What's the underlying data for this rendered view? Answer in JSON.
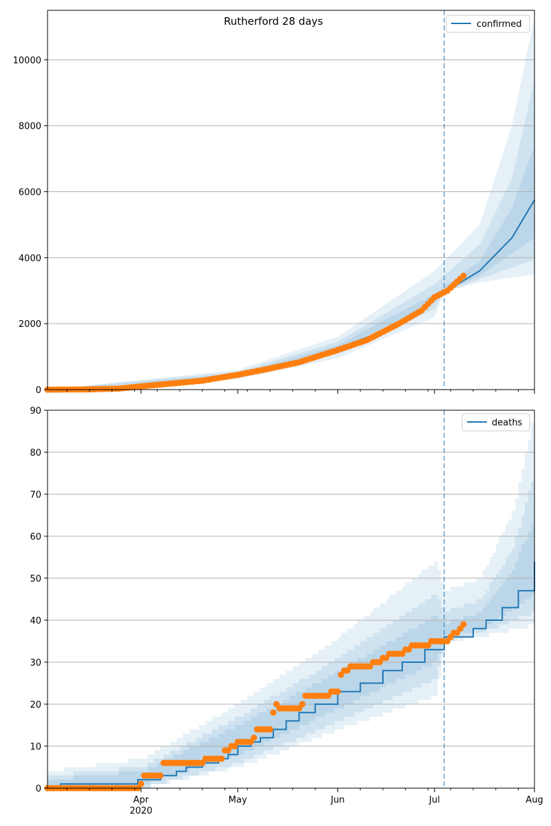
{
  "chart_data": [
    {
      "type": "line",
      "title": "Rutherford 28 days",
      "legend": {
        "label": "confirmed",
        "placement": "top-right"
      },
      "ylim": [
        0,
        11500
      ],
      "yticks": [
        0,
        2000,
        4000,
        6000,
        8000,
        10000
      ],
      "xlim": [
        "2020-03-03",
        "2020-08-01"
      ],
      "grid_y": true,
      "forecast_start": "2020-07-04",
      "colors": {
        "line": "#1f77b4",
        "points": "#ff7f0e",
        "band": "#1f77b4",
        "vline": "#1f77b4"
      },
      "series": [
        {
          "name": "confirmed",
          "kind": "line",
          "points": [
            [
              "2020-03-03",
              0
            ],
            [
              "2020-03-15",
              5
            ],
            [
              "2020-03-25",
              30
            ],
            [
              "2020-04-01",
              100
            ],
            [
              "2020-04-10",
              180
            ],
            [
              "2020-04-20",
              270
            ],
            [
              "2020-05-01",
              420
            ],
            [
              "2020-05-10",
              610
            ],
            [
              "2020-05-20",
              810
            ],
            [
              "2020-06-01",
              1260
            ],
            [
              "2020-06-15",
              1760
            ],
            [
              "2020-06-25",
              2300
            ],
            [
              "2020-07-04",
              2950
            ],
            [
              "2020-07-15",
              3600
            ],
            [
              "2020-07-25",
              4600
            ],
            [
              "2020-08-01",
              5750
            ]
          ]
        },
        {
          "kind": "points",
          "points": [
            [
              "2020-03-03",
              0
            ],
            [
              "2020-03-15",
              5
            ],
            [
              "2020-03-25",
              30
            ],
            [
              "2020-04-01",
              100
            ],
            [
              "2020-04-10",
              180
            ],
            [
              "2020-04-20",
              270
            ],
            [
              "2020-05-01",
              450
            ],
            [
              "2020-05-10",
              620
            ],
            [
              "2020-05-20",
              830
            ],
            [
              "2020-06-01",
              1200
            ],
            [
              "2020-06-10",
              1500
            ],
            [
              "2020-06-20",
              2000
            ],
            [
              "2020-06-27",
              2400
            ],
            [
              "2020-07-01",
              2800
            ],
            [
              "2020-07-05",
              3000
            ],
            [
              "2020-07-10",
              3450
            ]
          ]
        }
      ],
      "bands": [
        {
          "upper": [
            [
              "2020-03-03",
              0
            ],
            [
              "2020-05-01",
              600
            ],
            [
              "2020-06-01",
              1600
            ],
            [
              "2020-07-01",
              3600
            ],
            [
              "2020-07-15",
              5000
            ],
            [
              "2020-07-25",
              8000
            ],
            [
              "2020-08-01",
              11300
            ]
          ],
          "lower": [
            [
              "2020-03-03",
              0
            ],
            [
              "2020-05-01",
              320
            ],
            [
              "2020-06-01",
              950
            ],
            [
              "2020-07-01",
              2200
            ],
            [
              "2020-07-04",
              2950
            ],
            [
              "2020-07-15",
              3250
            ],
            [
              "2020-08-01",
              3500
            ]
          ]
        },
        {
          "upper": [
            [
              "2020-03-03",
              0
            ],
            [
              "2020-05-01",
              540
            ],
            [
              "2020-06-01",
              1450
            ],
            [
              "2020-07-01",
              3200
            ],
            [
              "2020-07-15",
              4400
            ],
            [
              "2020-07-25",
              6400
            ],
            [
              "2020-08-01",
              9400
            ]
          ],
          "lower": [
            [
              "2020-03-03",
              0
            ],
            [
              "2020-05-01",
              370
            ],
            [
              "2020-06-01",
              1080
            ],
            [
              "2020-07-01",
              2450
            ],
            [
              "2020-07-04",
              2950
            ],
            [
              "2020-07-15",
              3350
            ],
            [
              "2020-08-01",
              3950
            ]
          ]
        },
        {
          "upper": [
            [
              "2020-03-03",
              0
            ],
            [
              "2020-05-01",
              480
            ],
            [
              "2020-06-01",
              1350
            ],
            [
              "2020-07-01",
              2900
            ],
            [
              "2020-07-15",
              3900
            ],
            [
              "2020-07-25",
              5500
            ],
            [
              "2020-08-01",
              7400
            ]
          ],
          "lower": [
            [
              "2020-03-03",
              0
            ],
            [
              "2020-05-01",
              420
            ],
            [
              "2020-06-01",
              1180
            ],
            [
              "2020-07-01",
              2650
            ],
            [
              "2020-07-04",
              2950
            ],
            [
              "2020-07-15",
              3450
            ],
            [
              "2020-08-01",
              4600
            ]
          ]
        }
      ]
    },
    {
      "type": "line",
      "legend": {
        "label": "deaths",
        "placement": "top-right"
      },
      "ylim": [
        0,
        90
      ],
      "yticks": [
        0,
        10,
        20,
        30,
        40,
        50,
        60,
        70,
        80,
        90
      ],
      "xlim": [
        "2020-03-03",
        "2020-08-01"
      ],
      "xticks": [
        {
          "date": "2020-04-01",
          "label": "Apr",
          "sublabel": "2020"
        },
        {
          "date": "2020-05-01",
          "label": "May",
          "sublabel": ""
        },
        {
          "date": "2020-06-01",
          "label": "Jun",
          "sublabel": ""
        },
        {
          "date": "2020-07-01",
          "label": "Jul",
          "sublabel": ""
        },
        {
          "date": "2020-08-01",
          "label": "Aug",
          "sublabel": ""
        }
      ],
      "grid_y": true,
      "forecast_start": "2020-07-04",
      "colors": {
        "line": "#1f77b4",
        "points": "#ff7f0e",
        "band": "#1f77b4",
        "vline": "#1f77b4"
      },
      "series": [
        {
          "name": "deaths",
          "kind": "step",
          "points": [
            [
              "2020-03-03",
              0
            ],
            [
              "2020-03-07",
              1
            ],
            [
              "2020-03-31",
              2
            ],
            [
              "2020-04-07",
              3
            ],
            [
              "2020-04-12",
              4
            ],
            [
              "2020-04-15",
              5
            ],
            [
              "2020-04-20",
              6
            ],
            [
              "2020-04-25",
              7
            ],
            [
              "2020-04-28",
              8
            ],
            [
              "2020-05-01",
              10
            ],
            [
              "2020-05-05",
              11
            ],
            [
              "2020-05-08",
              12
            ],
            [
              "2020-05-12",
              14
            ],
            [
              "2020-05-16",
              16
            ],
            [
              "2020-05-20",
              18
            ],
            [
              "2020-05-25",
              20
            ],
            [
              "2020-06-01",
              23
            ],
            [
              "2020-06-08",
              25
            ],
            [
              "2020-06-15",
              28
            ],
            [
              "2020-06-21",
              30
            ],
            [
              "2020-06-28",
              33
            ],
            [
              "2020-07-04",
              36
            ],
            [
              "2020-07-13",
              38
            ],
            [
              "2020-07-17",
              40
            ],
            [
              "2020-07-22",
              43
            ],
            [
              "2020-07-27",
              47
            ],
            [
              "2020-08-01",
              54
            ]
          ]
        },
        {
          "kind": "points",
          "points": [
            [
              "2020-03-03",
              0
            ],
            [
              "2020-03-31",
              0
            ],
            [
              "2020-04-01",
              1
            ],
            [
              "2020-04-02",
              3
            ],
            [
              "2020-04-08",
              6
            ],
            [
              "2020-04-20",
              6
            ],
            [
              "2020-04-21",
              7
            ],
            [
              "2020-04-25",
              7
            ],
            [
              "2020-04-27",
              9
            ],
            [
              "2020-04-29",
              10
            ],
            [
              "2020-05-01",
              11
            ],
            [
              "2020-05-05",
              11
            ],
            [
              "2020-05-06",
              12
            ],
            [
              "2020-05-07",
              14
            ],
            [
              "2020-05-11",
              14
            ],
            [
              "2020-05-12",
              18
            ],
            [
              "2020-05-13",
              20
            ],
            [
              "2020-05-14",
              19
            ],
            [
              "2020-05-20",
              19
            ],
            [
              "2020-05-21",
              20
            ],
            [
              "2020-05-22",
              22
            ],
            [
              "2020-05-29",
              22
            ],
            [
              "2020-05-30",
              23
            ],
            [
              "2020-06-01",
              23
            ],
            [
              "2020-06-02",
              27
            ],
            [
              "2020-06-03",
              28
            ],
            [
              "2020-06-05",
              29
            ],
            [
              "2020-06-11",
              29
            ],
            [
              "2020-06-12",
              30
            ],
            [
              "2020-06-15",
              31
            ],
            [
              "2020-06-17",
              32
            ],
            [
              "2020-06-21",
              32
            ],
            [
              "2020-06-22",
              33
            ],
            [
              "2020-06-24",
              34
            ],
            [
              "2020-06-29",
              34
            ],
            [
              "2020-06-30",
              35
            ],
            [
              "2020-07-05",
              35
            ],
            [
              "2020-07-06",
              36
            ],
            [
              "2020-07-07",
              37
            ],
            [
              "2020-07-09",
              38
            ],
            [
              "2020-07-10",
              39
            ]
          ]
        }
      ],
      "bands": [
        {
          "upper": [
            [
              "2020-03-03",
              4
            ],
            [
              "2020-04-01",
              7
            ],
            [
              "2020-05-01",
              20
            ],
            [
              "2020-06-01",
              36
            ],
            [
              "2020-07-01",
              54
            ],
            [
              "2020-07-04",
              47
            ],
            [
              "2020-07-15",
              50
            ],
            [
              "2020-07-25",
              66
            ],
            [
              "2020-08-01",
              90
            ]
          ],
          "lower": [
            [
              "2020-03-03",
              0
            ],
            [
              "2020-04-01",
              0
            ],
            [
              "2020-05-01",
              5
            ],
            [
              "2020-06-01",
              14
            ],
            [
              "2020-07-01",
              22
            ],
            [
              "2020-07-04",
              35
            ],
            [
              "2020-07-15",
              36
            ],
            [
              "2020-08-01",
              39
            ]
          ]
        },
        {
          "upper": [
            [
              "2020-03-03",
              3
            ],
            [
              "2020-04-01",
              5
            ],
            [
              "2020-05-01",
              17
            ],
            [
              "2020-06-01",
              31
            ],
            [
              "2020-07-01",
              46
            ],
            [
              "2020-07-04",
              42
            ],
            [
              "2020-07-15",
              45
            ],
            [
              "2020-07-25",
              57
            ],
            [
              "2020-08-01",
              76
            ]
          ],
          "lower": [
            [
              "2020-03-03",
              0
            ],
            [
              "2020-04-01",
              0
            ],
            [
              "2020-05-01",
              6
            ],
            [
              "2020-06-01",
              16
            ],
            [
              "2020-07-01",
              26
            ],
            [
              "2020-07-04",
              35
            ],
            [
              "2020-07-15",
              37
            ],
            [
              "2020-08-01",
              42
            ]
          ]
        },
        {
          "upper": [
            [
              "2020-03-03",
              2
            ],
            [
              "2020-04-01",
              4
            ],
            [
              "2020-05-01",
              15
            ],
            [
              "2020-06-01",
              28
            ],
            [
              "2020-07-01",
              41
            ],
            [
              "2020-07-04",
              39
            ],
            [
              "2020-07-15",
              42
            ],
            [
              "2020-07-25",
              52
            ],
            [
              "2020-08-01",
              65
            ]
          ],
          "lower": [
            [
              "2020-03-03",
              0
            ],
            [
              "2020-04-01",
              1
            ],
            [
              "2020-05-01",
              8
            ],
            [
              "2020-06-01",
              19
            ],
            [
              "2020-07-01",
              30
            ],
            [
              "2020-07-04",
              36
            ],
            [
              "2020-07-15",
              38
            ],
            [
              "2020-08-01",
              46
            ]
          ]
        }
      ]
    }
  ]
}
